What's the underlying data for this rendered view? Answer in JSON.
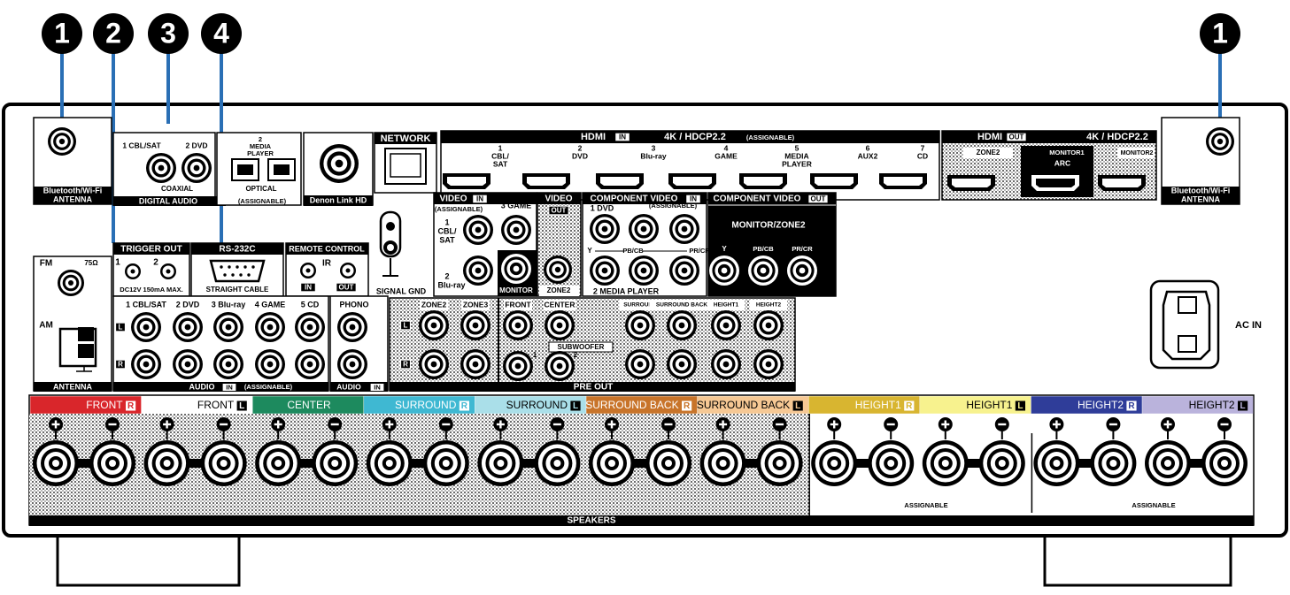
{
  "callouts": [
    "1",
    "2",
    "3",
    "4",
    "1"
  ],
  "antenna_left": {
    "line1": "Bluetooth/Wi-Fi",
    "line2": "ANTENNA"
  },
  "digital_audio": {
    "coax": [
      "1 CBL/SAT",
      "2 DVD"
    ],
    "coaxial": "COAXIAL",
    "optical_input": [
      "2",
      "MEDIA",
      "PLAYER"
    ],
    "optical": "OPTICAL",
    "assignable": "(ASSIGNABLE)",
    "title": "DIGITAL AUDIO"
  },
  "denon_link": "Denon Link HD",
  "network": "NETWORK",
  "hdmi_in": {
    "hdmi": "HDMI",
    "in": "IN",
    "spec": "4K / HDCP2.2",
    "assignable": "(ASSIGNABLE)",
    "ports": [
      [
        "1",
        "CBL/",
        "SAT"
      ],
      [
        "2",
        "DVD"
      ],
      [
        "3",
        "Blu-ray"
      ],
      [
        "4",
        "GAME"
      ],
      [
        "5",
        "MEDIA",
        "PLAYER"
      ],
      [
        "6",
        "AUX2"
      ],
      [
        "7",
        "CD"
      ]
    ]
  },
  "hdmi_out": {
    "hdmi": "HDMI",
    "out": "OUT",
    "spec": "4K / HDCP2.2",
    "ports": [
      [
        "ZONE2"
      ],
      [
        "MONITOR1",
        "ARC"
      ],
      [
        "MONITOR2"
      ]
    ]
  },
  "antenna_right": {
    "line1": "Bluetooth/Wi-Fi",
    "line2": "ANTENNA"
  },
  "trigger_out": {
    "title": "TRIGGER OUT",
    "ports": [
      "1",
      "2"
    ],
    "spec": "DC12V 150mA MAX."
  },
  "rs232c": {
    "title": "RS-232C",
    "note": "STRAIGHT CABLE"
  },
  "remote_control": {
    "title": "REMOTE CONTROL",
    "ir": "IR",
    "in": "IN",
    "out": "OUT"
  },
  "signal_gnd": "SIGNAL GND",
  "video_in": {
    "title": "VIDEO",
    "in": "IN",
    "assignable": "(ASSIGNABLE)",
    "input1": [
      "1",
      "CBL/",
      "SAT"
    ],
    "input2": [
      "2",
      "Blu-ray"
    ],
    "input3": "3 GAME",
    "monitor": "MONITOR"
  },
  "video_out": {
    "title": "VIDEO",
    "out": "OUT",
    "zone2": "ZONE2"
  },
  "component_in": {
    "title": "COMPONENT VIDEO",
    "in": "IN",
    "assignable": "(ASSIGNABLE)",
    "input1": "1 DVD",
    "input2": "2 MEDIA PLAYER",
    "y": "Y",
    "pb": "PB/CB",
    "pr": "PR/CR"
  },
  "component_out": {
    "title": "COMPONENT VIDEO",
    "out": "OUT",
    "zone": "MONITOR/ZONE2",
    "y": "Y",
    "pb": "PB/CB",
    "pr": "PR/CR"
  },
  "tuner": {
    "fm": "FM",
    "ohm": "75Ω",
    "am": "AM",
    "title": "ANTENNA"
  },
  "audio_in": {
    "inputs": [
      "1 CBL/SAT",
      "2 DVD",
      "3 Blu-ray",
      "4 GAME",
      "5 CD"
    ],
    "l": "L",
    "r": "R",
    "title": "AUDIO",
    "in": "IN",
    "assignable": "(ASSIGNABLE)"
  },
  "phono": {
    "label": "PHONO",
    "title": "AUDIO",
    "in": "IN"
  },
  "pre_out": {
    "channels": [
      "ZONE2",
      "ZONE3",
      "FRONT",
      "CENTER",
      "SURROUND",
      "SURROUND BACK",
      "HEIGHT1",
      "HEIGHT2"
    ],
    "subwoofer": "SUBWOOFER",
    "sub_ports": [
      "1",
      "2"
    ],
    "l": "L",
    "r": "R",
    "title": "PRE OUT"
  },
  "ac_in": "AC IN",
  "speakers": {
    "channels": [
      {
        "name": "FRONT",
        "side": "R",
        "color": "#d9262b",
        "text_color": "#ffffff"
      },
      {
        "name": "FRONT",
        "side": "L",
        "color": "#ffffff",
        "text_color": "#000000"
      },
      {
        "name": "CENTER",
        "side": null,
        "color": "#1d8a5e",
        "text_color": "#ffffff"
      },
      {
        "name": "SURROUND",
        "side": "R",
        "color": "#3fb8d2",
        "text_color": "#ffffff"
      },
      {
        "name": "SURROUND",
        "side": "L",
        "color": "#aadfe9",
        "text_color": "#000000"
      },
      {
        "name": "SURROUND BACK",
        "side": "R",
        "color": "#c8742a",
        "text_color": "#ffffff"
      },
      {
        "name": "SURROUND BACK",
        "side": "L",
        "color": "#f6c894",
        "text_color": "#000000"
      },
      {
        "name": "HEIGHT1",
        "side": "R",
        "color": "#d8b530",
        "text_color": "#ffffff"
      },
      {
        "name": "HEIGHT1",
        "side": "L",
        "color": "#f7f28e",
        "text_color": "#000000"
      },
      {
        "name": "HEIGHT2",
        "side": "R",
        "color": "#2f3d99",
        "text_color": "#ffffff"
      },
      {
        "name": "HEIGHT2",
        "side": "L",
        "color": "#bab3dc",
        "text_color": "#000000"
      }
    ],
    "assignable": [
      "ASSIGNABLE",
      "ASSIGNABLE"
    ],
    "title": "SPEAKERS"
  }
}
